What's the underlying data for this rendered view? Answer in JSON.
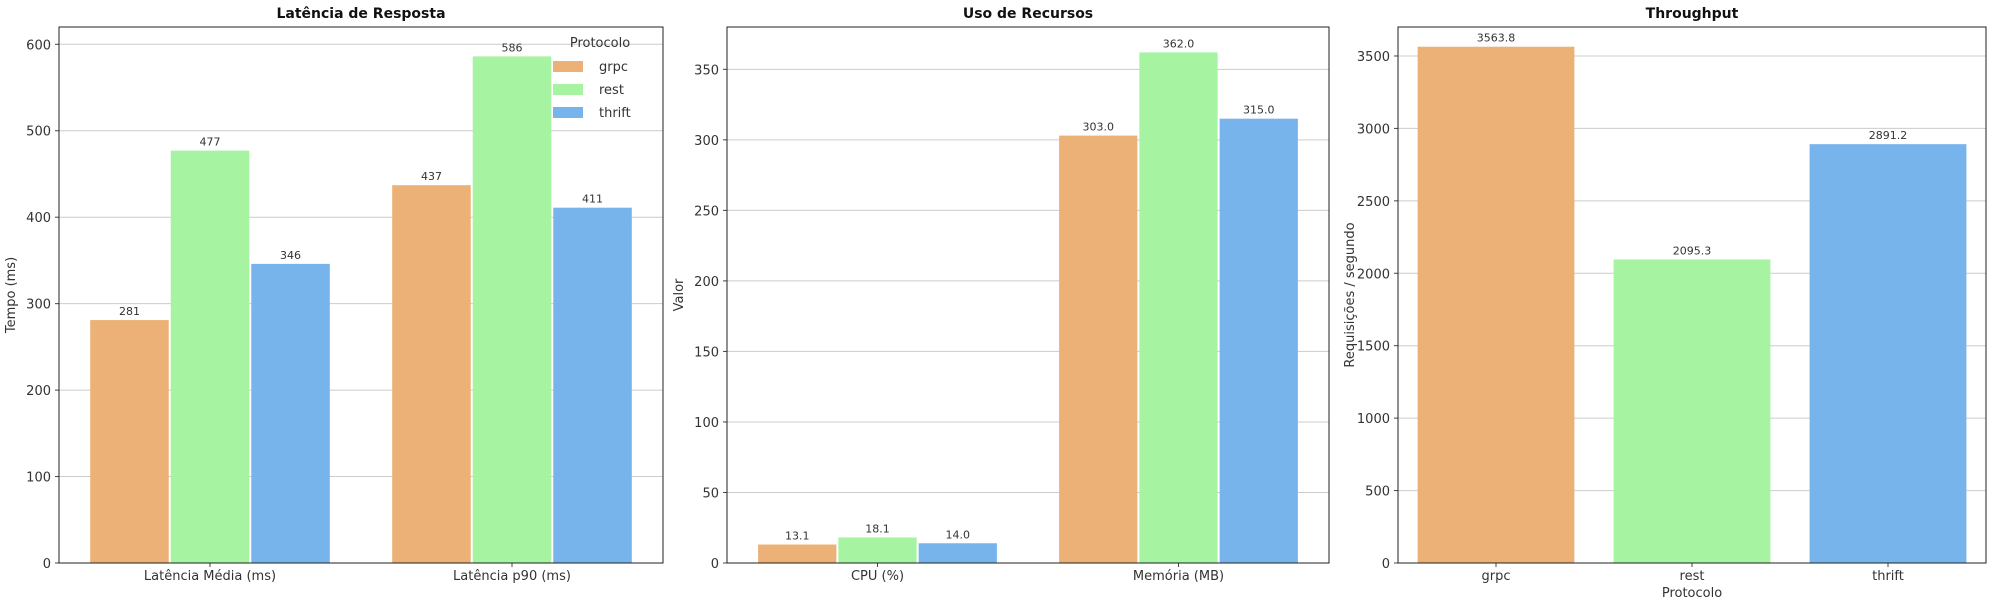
{
  "colors": {
    "grpc": "#ebb176",
    "rest": "#a6f3a2",
    "thrift": "#78b4ec",
    "grid": "#cccccc",
    "frame": "#222222"
  },
  "chart_data": [
    {
      "type": "bar",
      "title": "Latência de Resposta",
      "xlabel": "",
      "ylabel": "Tempo (ms)",
      "ylim": [
        0,
        620
      ],
      "yticks": [
        0,
        100,
        200,
        300,
        400,
        500,
        600
      ],
      "categories": [
        "Latência Média (ms)",
        "Latência p90 (ms)"
      ],
      "series": [
        {
          "name": "grpc",
          "values": [
            281,
            437
          ]
        },
        {
          "name": "rest",
          "values": [
            477,
            586
          ]
        },
        {
          "name": "thrift",
          "values": [
            346,
            411
          ]
        }
      ],
      "value_labels": [
        [
          "281",
          "437"
        ],
        [
          "477",
          "586"
        ],
        [
          "346",
          "411"
        ]
      ],
      "legend": {
        "title": "Protocolo",
        "position": "top-right"
      },
      "grid": true
    },
    {
      "type": "bar",
      "title": "Uso de Recursos",
      "xlabel": "",
      "ylabel": "Valor",
      "ylim": [
        0,
        380
      ],
      "yticks": [
        0,
        50,
        100,
        150,
        200,
        250,
        300,
        350
      ],
      "categories": [
        "CPU (%)",
        "Memória (MB)"
      ],
      "series": [
        {
          "name": "grpc",
          "values": [
            13.1,
            303.0
          ]
        },
        {
          "name": "rest",
          "values": [
            18.1,
            362.0
          ]
        },
        {
          "name": "thrift",
          "values": [
            14.0,
            315.0
          ]
        }
      ],
      "value_labels": [
        [
          "13.1",
          "303.0"
        ],
        [
          "18.1",
          "362.0"
        ],
        [
          "14.0",
          "315.0"
        ]
      ],
      "grid": true
    },
    {
      "type": "bar",
      "title": "Throughput",
      "xlabel": "Protocolo",
      "ylabel": "Requisições / segundo",
      "ylim": [
        0,
        3700
      ],
      "yticks": [
        0,
        500,
        1000,
        1500,
        2000,
        2500,
        3000,
        3500
      ],
      "categories": [
        "grpc",
        "rest",
        "thrift"
      ],
      "values": [
        3563.8,
        2095.3,
        2891.2
      ],
      "value_labels": [
        "3563.8",
        "2095.3",
        "2891.2"
      ],
      "grid": true
    }
  ]
}
